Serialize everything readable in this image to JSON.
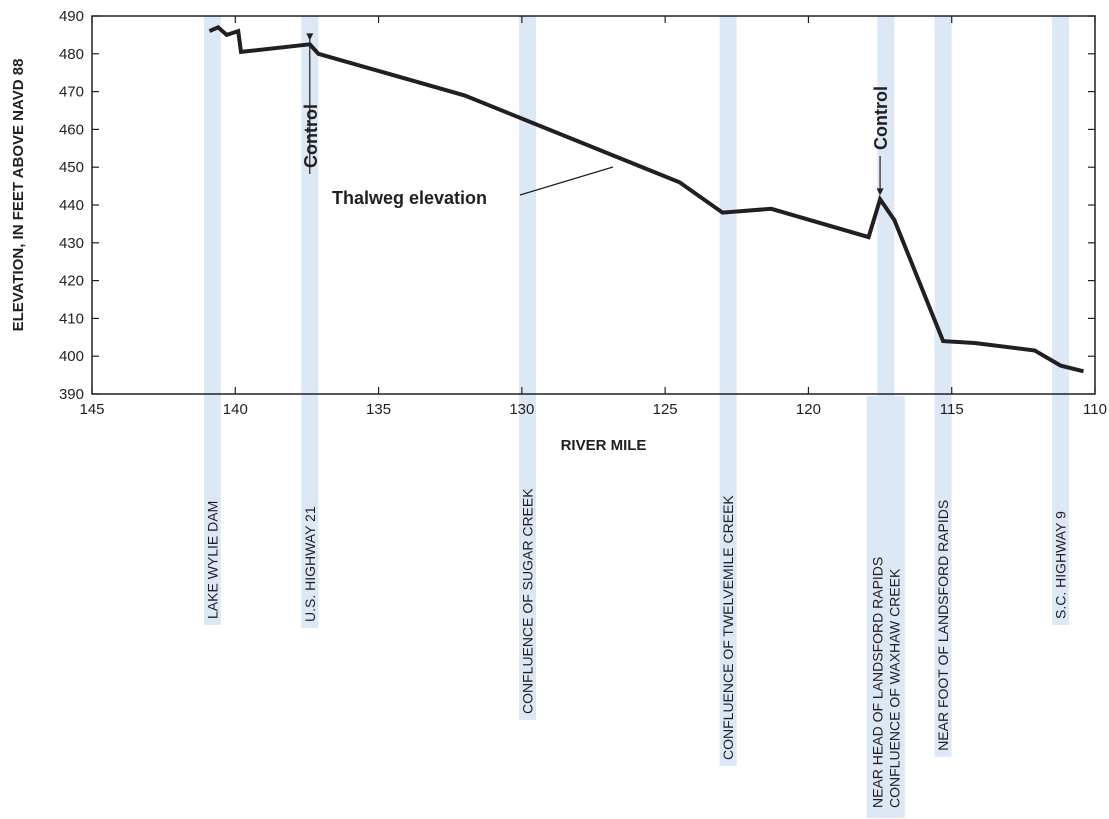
{
  "chart_data": {
    "type": "line",
    "title": "",
    "xlabel": "RIVER MILE",
    "ylabel": "ELEVATION, IN FEET ABOVE NAVD 88",
    "xlim": [
      145,
      110
    ],
    "ylim": [
      390,
      490
    ],
    "x_ticks": [
      145,
      140,
      135,
      130,
      125,
      120,
      115,
      110
    ],
    "y_ticks": [
      390,
      400,
      410,
      420,
      430,
      440,
      450,
      460,
      470,
      480,
      490
    ],
    "grid": false,
    "series": [
      {
        "name": "Thalweg elevation",
        "x": [
          140.9,
          140.6,
          140.3,
          139.9,
          139.8,
          137.4,
          137.1,
          132.0,
          124.5,
          123.0,
          121.3,
          117.9,
          117.5,
          117.0,
          115.3,
          114.2,
          112.1,
          111.2,
          110.4
        ],
        "y": [
          486.0,
          487.0,
          485.0,
          486.0,
          480.5,
          482.5,
          480.0,
          469.0,
          446.0,
          438.0,
          439.0,
          431.5,
          441.5,
          436.0,
          404.0,
          403.5,
          401.5,
          397.5,
          396.0
        ]
      }
    ],
    "annotations": [
      {
        "text": "Thalweg elevation"
      },
      {
        "text": "Control",
        "points_to": {
          "x": 137.4,
          "y": 482.5
        }
      },
      {
        "text": "Control",
        "points_to": {
          "x": 117.5,
          "y": 441.5
        }
      }
    ],
    "landmarks": [
      {
        "mile": 140.8,
        "lines": [
          "LAKE WYLIE DAM"
        ]
      },
      {
        "mile": 137.4,
        "lines": [
          "U.S. HIGHWAY 21"
        ]
      },
      {
        "mile": 129.8,
        "lines": [
          "CONFLUENCE OF SUGAR CREEK"
        ]
      },
      {
        "mile": 122.8,
        "lines": [
          "CONFLUENCE OF TWELVEMILE CREEK"
        ]
      },
      {
        "mile": 117.3,
        "lines": [
          "NEAR HEAD OF LANDSFORD RAPIDS",
          "CONFLUENCE OF WAXHAW CREEK"
        ],
        "wide": true
      },
      {
        "mile": 115.3,
        "lines": [
          "NEAR FOOT OF LANDSFORD RAPIDS"
        ]
      },
      {
        "mile": 111.2,
        "lines": [
          "S.C. HIGHWAY 9"
        ]
      }
    ],
    "colors": {
      "line": "#231f20",
      "band": "#dce8f5"
    }
  }
}
